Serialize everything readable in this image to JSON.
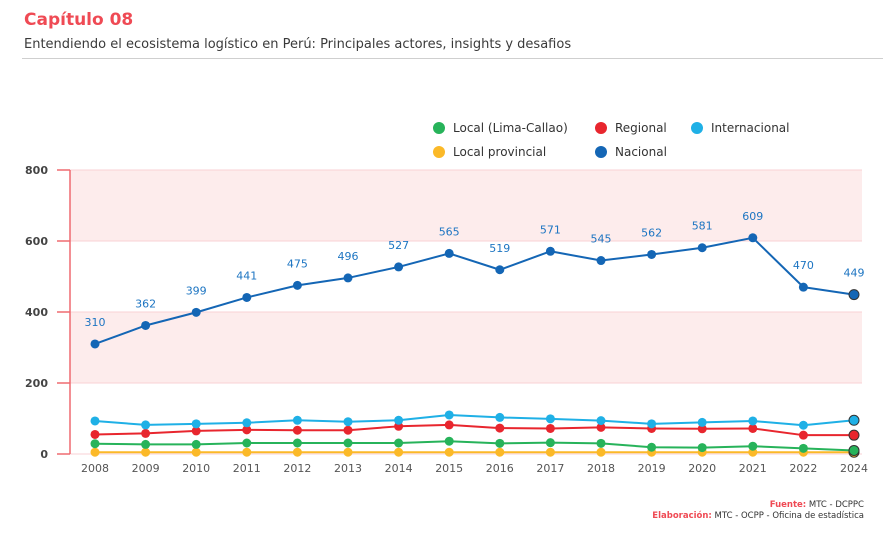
{
  "header": {
    "chapter": "Capítulo 08",
    "subtitle": "Entendiendo el ecosistema logístico en Perú: Principales actores, insights y desafios"
  },
  "footer": {
    "source_label": "Fuente:",
    "source_value": "MTC - DCPPC",
    "elaboration_label": "Elaboración:",
    "elaboration_value": "MTC - OCPP - Oficina de estadística"
  },
  "chart_data": {
    "type": "line",
    "title": "",
    "xlabel": "",
    "ylabel": "",
    "ylim": [
      0,
      800
    ],
    "yticks": [
      0,
      200,
      400,
      600,
      800
    ],
    "grid": false,
    "shaded_bands": [
      [
        200,
        400
      ],
      [
        600,
        800
      ]
    ],
    "legend_position": "top-right",
    "categories": [
      "2008",
      "2009",
      "2010",
      "2011",
      "2012",
      "2013",
      "2014",
      "2015",
      "2016",
      "2017",
      "2018",
      "2019",
      "2020",
      "2021",
      "2022",
      "2024"
    ],
    "series": [
      {
        "name": "Local (Lima-Callao)",
        "color": "#27b35a",
        "values": [
          29,
          27,
          27,
          31,
          31,
          31,
          31,
          36,
          30,
          32,
          30,
          19,
          18,
          22,
          16,
          10
        ],
        "labels_shown": false
      },
      {
        "name": "Regional",
        "color": "#e8262e",
        "values": [
          55,
          58,
          65,
          68,
          67,
          67,
          78,
          82,
          73,
          72,
          75,
          72,
          71,
          72,
          53,
          53
        ],
        "labels_shown": false
      },
      {
        "name": "Internacional",
        "color": "#1fb0e6",
        "values": [
          93,
          82,
          85,
          88,
          95,
          91,
          95,
          110,
          103,
          99,
          94,
          85,
          89,
          93,
          81,
          95
        ],
        "labels_shown": false
      },
      {
        "name": "Local provincial",
        "color": "#fbb928",
        "values": [
          5,
          5,
          5,
          5,
          5,
          5,
          5,
          5,
          5,
          5,
          5,
          5,
          5,
          5,
          5,
          5
        ],
        "labels_shown": false
      },
      {
        "name": "Nacional",
        "color": "#1466b5",
        "values": [
          310,
          362,
          399,
          441,
          475,
          496,
          527,
          565,
          519,
          571,
          545,
          562,
          581,
          609,
          470,
          449
        ],
        "labels_shown": true
      }
    ]
  },
  "legend": [
    {
      "label": "Local (Lima-Callao)",
      "color": "#27b35a"
    },
    {
      "label": "Regional",
      "color": "#e8262e"
    },
    {
      "label": "Internacional",
      "color": "#1fb0e6"
    },
    {
      "label": "Local provincial",
      "color": "#fbb928"
    },
    {
      "label": "Nacional",
      "color": "#1466b5"
    }
  ]
}
